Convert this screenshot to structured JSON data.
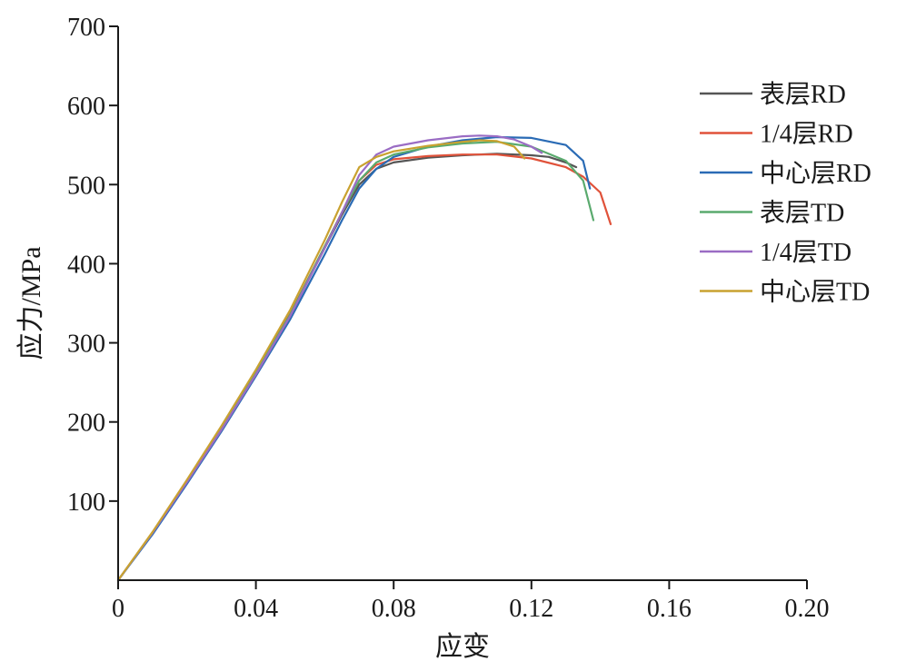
{
  "chart_data": {
    "type": "line",
    "title": "",
    "xlabel": "应变",
    "ylabel": "应力/MPa",
    "xlim": [
      0,
      0.2
    ],
    "ylim": [
      0,
      700
    ],
    "x_ticks": [
      "0",
      "0.04",
      "0.08",
      "0.12",
      "0.16",
      "0.20"
    ],
    "x_tick_values": [
      0,
      0.04,
      0.08,
      0.12,
      0.16,
      0.2
    ],
    "y_ticks": [
      "100",
      "200",
      "300",
      "400",
      "500",
      "600",
      "700"
    ],
    "y_tick_values": [
      100,
      200,
      300,
      400,
      500,
      600,
      700
    ],
    "grid": false,
    "legend_position": "right",
    "series": [
      {
        "name": "表层RD",
        "color": "#555555",
        "x": [
          0,
          0.01,
          0.02,
          0.03,
          0.04,
          0.05,
          0.06,
          0.065,
          0.07,
          0.075,
          0.08,
          0.09,
          0.1,
          0.11,
          0.12,
          0.125,
          0.13,
          0.133
        ],
        "y": [
          0,
          60,
          125,
          192,
          262,
          335,
          420,
          462,
          500,
          520,
          528,
          534,
          537,
          539,
          537,
          535,
          528,
          522
        ]
      },
      {
        "name": "1/4层RD",
        "color": "#e0523a",
        "x": [
          0,
          0.01,
          0.02,
          0.03,
          0.04,
          0.05,
          0.06,
          0.065,
          0.07,
          0.075,
          0.08,
          0.09,
          0.1,
          0.11,
          0.12,
          0.13,
          0.135,
          0.14,
          0.143
        ],
        "y": [
          0,
          60,
          125,
          193,
          263,
          337,
          422,
          465,
          505,
          525,
          532,
          536,
          538,
          538,
          533,
          522,
          510,
          490,
          450
        ]
      },
      {
        "name": "中心层RD",
        "color": "#2a6bb5",
        "x": [
          0,
          0.01,
          0.02,
          0.03,
          0.04,
          0.05,
          0.06,
          0.065,
          0.07,
          0.075,
          0.08,
          0.09,
          0.1,
          0.11,
          0.12,
          0.13,
          0.135,
          0.137
        ],
        "y": [
          0,
          58,
          122,
          188,
          258,
          330,
          412,
          455,
          495,
          520,
          535,
          548,
          556,
          560,
          559,
          550,
          530,
          495
        ]
      },
      {
        "name": "表层TD",
        "color": "#5aaa6e",
        "x": [
          0,
          0.01,
          0.02,
          0.03,
          0.04,
          0.05,
          0.06,
          0.065,
          0.07,
          0.075,
          0.08,
          0.09,
          0.1,
          0.11,
          0.12,
          0.13,
          0.135,
          0.138
        ],
        "y": [
          0,
          60,
          125,
          192,
          262,
          336,
          422,
          465,
          505,
          528,
          538,
          547,
          552,
          554,
          548,
          530,
          505,
          455
        ]
      },
      {
        "name": "1/4层TD",
        "color": "#9a6cc4",
        "x": [
          0,
          0.01,
          0.02,
          0.03,
          0.04,
          0.05,
          0.06,
          0.065,
          0.07,
          0.075,
          0.08,
          0.09,
          0.1,
          0.105,
          0.11,
          0.115,
          0.12,
          0.123
        ],
        "y": [
          0,
          60,
          124,
          190,
          260,
          334,
          420,
          465,
          512,
          538,
          548,
          556,
          561,
          562,
          561,
          557,
          548,
          540
        ]
      },
      {
        "name": "中心层TD",
        "color": "#c9a230",
        "x": [
          0,
          0.01,
          0.02,
          0.03,
          0.04,
          0.05,
          0.06,
          0.065,
          0.07,
          0.075,
          0.08,
          0.09,
          0.1,
          0.105,
          0.11,
          0.115,
          0.118
        ],
        "y": [
          0,
          61,
          127,
          195,
          266,
          342,
          430,
          478,
          522,
          535,
          542,
          549,
          554,
          556,
          555,
          548,
          533
        ]
      }
    ]
  }
}
